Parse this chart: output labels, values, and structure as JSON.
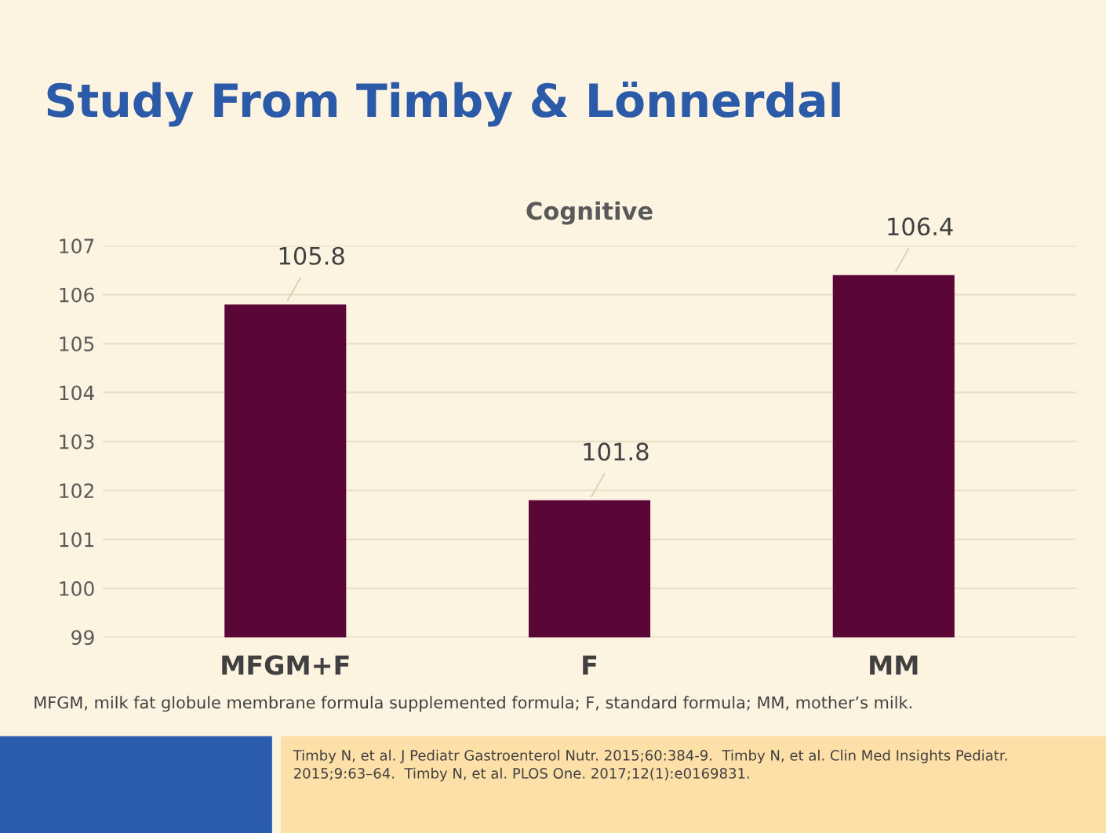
{
  "chart_data": {
    "type": "bar",
    "title": "Study From Timby & Lönnerdal",
    "subtitle": "Cognitive",
    "categories": [
      "MFGM+F",
      "F",
      "MM"
    ],
    "values": [
      105.8,
      101.8,
      106.4
    ],
    "color": "#5a0636",
    "data_labels": true,
    "ylim": [
      99,
      107
    ],
    "yticks": [
      99,
      100,
      101,
      102,
      103,
      104,
      105,
      106,
      107
    ],
    "grid": "y",
    "legend": false,
    "annotations": [
      "MFGM, milk fat globule membrane formula supplemented formula; F, standard formula; MM, mother’s milk.",
      "Timby N, et al. J Pediatr Gastroenterol Nutr. 2015;60:384-9.  Timby N, et al. Clin Med Insights Pediatr.\n2015;9:63–64.  Timby N, et al. PLOS One. 2017;12(1):e0169831."
    ]
  }
}
